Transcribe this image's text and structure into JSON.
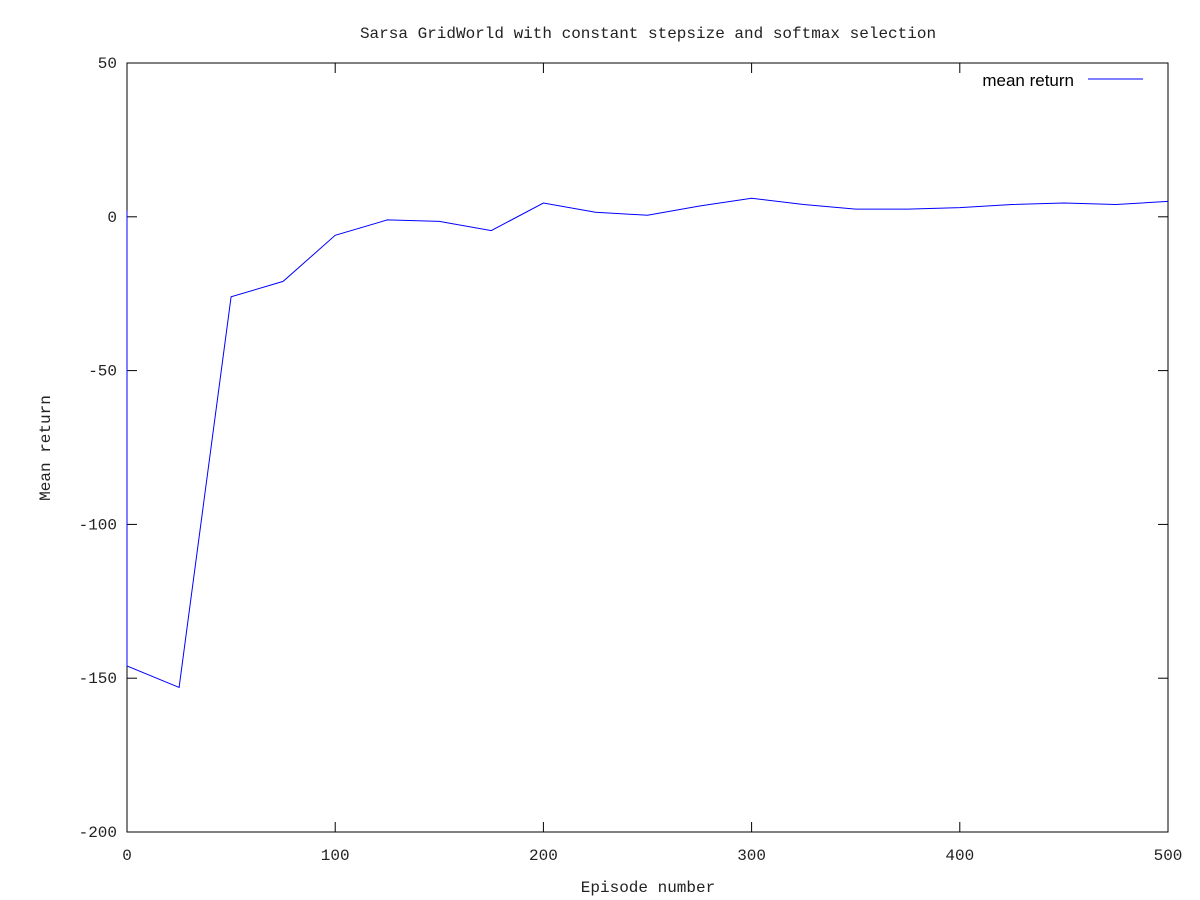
{
  "chart_data": {
    "type": "line",
    "title": "Sarsa GridWorld with constant stepsize and softmax selection",
    "xlabel": "Episode number",
    "ylabel": "Mean return",
    "xlim": [
      0,
      500
    ],
    "ylim": [
      -200,
      50
    ],
    "xticks": [
      "0",
      "100",
      "200",
      "300",
      "400",
      "500"
    ],
    "yticks": [
      "-200",
      "-150",
      "-100",
      "-50",
      "0",
      "50"
    ],
    "grid": false,
    "legend_position": "top-right",
    "series": [
      {
        "name": "mean return",
        "color": "#0000ff",
        "x": [
          0,
          0,
          25,
          50,
          75,
          100,
          125,
          150,
          175,
          200,
          225,
          250,
          275,
          300,
          325,
          350,
          375,
          400,
          425,
          450,
          475,
          500
        ],
        "y": [
          2,
          -146,
          -153,
          -26,
          -21,
          -6,
          -1,
          -1.5,
          -4.5,
          4.5,
          1.5,
          0.5,
          3.5,
          6,
          4,
          2.5,
          2.5,
          3,
          4,
          4.5,
          4,
          5
        ]
      }
    ]
  }
}
